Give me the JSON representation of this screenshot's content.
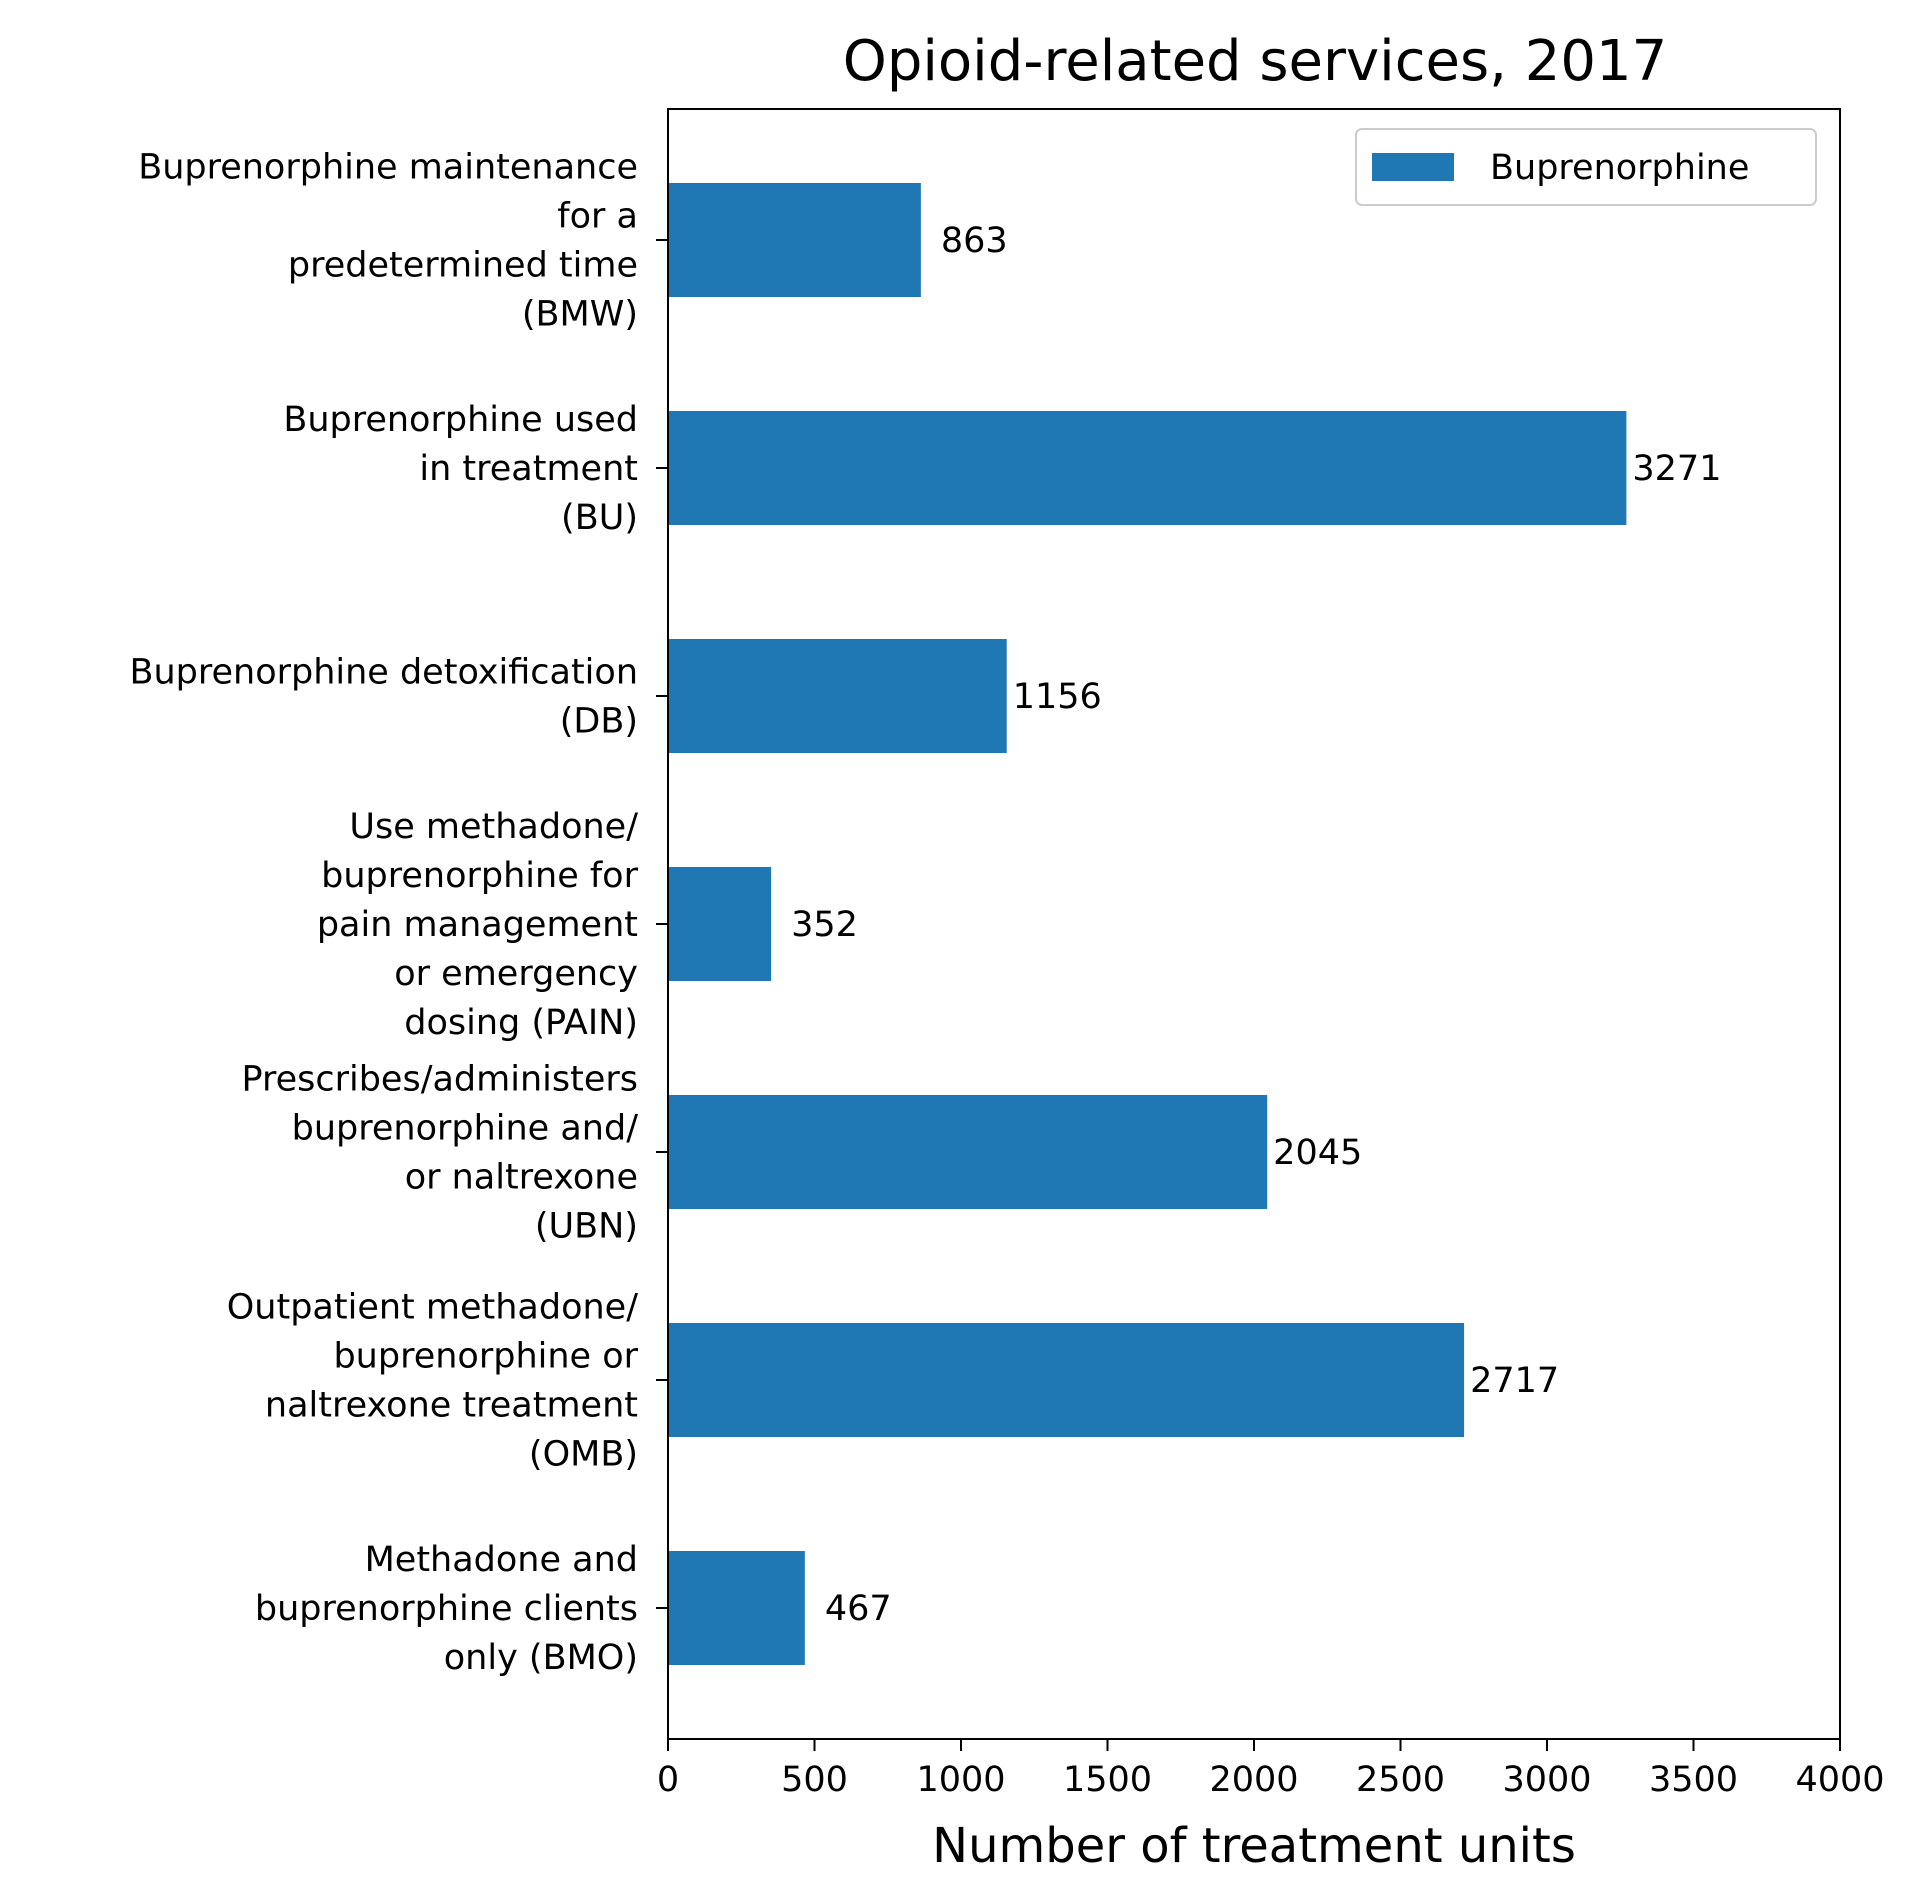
{
  "chart_data": {
    "type": "bar",
    "orientation": "horizontal",
    "title": "Opioid-related services, 2017",
    "xlabel": "Number of treatment units",
    "ylabel": "",
    "xlim": [
      0,
      4000
    ],
    "xticks": [
      0,
      500,
      1000,
      1500,
      2000,
      2500,
      3000,
      3500,
      4000
    ],
    "categories": [
      [
        "Buprenorphine maintenance",
        "for a",
        "predetermined time",
        "(BMW)"
      ],
      [
        "Buprenorphine used",
        "in treatment",
        "(BU)"
      ],
      [
        "Buprenorphine detoxification",
        "(DB)"
      ],
      [
        "Use methadone/",
        "buprenorphine for",
        "pain management",
        "or emergency",
        "dosing (PAIN)"
      ],
      [
        "Prescribes/administers",
        "buprenorphine and/",
        "or naltrexone",
        "(UBN)"
      ],
      [
        "Outpatient methadone/",
        "buprenorphine or",
        "naltrexone treatment",
        "(OMB)"
      ],
      [
        "Methadone and",
        "buprenorphine clients",
        "only (BMO)"
      ]
    ],
    "series": [
      {
        "name": "Buprenorphine",
        "color": "#1f77b4",
        "values": [
          863,
          3271,
          1156,
          352,
          2045,
          2717,
          467
        ],
        "labels": [
          "863",
          "3271",
          "1156",
          "352",
          "2045",
          "2717",
          "467"
        ]
      }
    ],
    "legend": {
      "position": "top-right"
    },
    "grid": false
  }
}
